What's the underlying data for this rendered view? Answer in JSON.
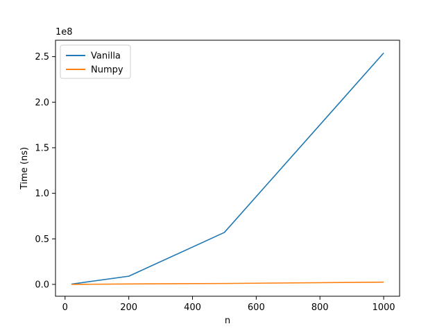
{
  "chart_data": {
    "type": "line",
    "title": "",
    "xlabel": "n",
    "ylabel": "Time (ns)",
    "y_offset_label": "1e8",
    "xlim": [
      -30,
      1050
    ],
    "ylim": [
      -0.13,
      2.68
    ],
    "y_scale_note": "values in units of 1e8 ns",
    "xticks": [
      0,
      200,
      400,
      600,
      800,
      1000
    ],
    "xtick_labels": [
      "0",
      "200",
      "400",
      "600",
      "800",
      "1000"
    ],
    "yticks": [
      0.0,
      0.5,
      1.0,
      1.5,
      2.0,
      2.5
    ],
    "ytick_labels": [
      "0.0",
      "0.5",
      "1.0",
      "1.5",
      "2.0",
      "2.5"
    ],
    "grid": false,
    "legend_position": "top-left",
    "series": [
      {
        "name": "Vanilla",
        "color": "#1f77b4",
        "x": [
          20,
          200,
          500,
          1000
        ],
        "y": [
          0.003,
          0.09,
          0.57,
          2.54
        ]
      },
      {
        "name": "Numpy",
        "color": "#ff7f0e",
        "x": [
          20,
          200,
          500,
          1000
        ],
        "y": [
          0.0,
          0.005,
          0.01,
          0.025
        ]
      }
    ]
  }
}
